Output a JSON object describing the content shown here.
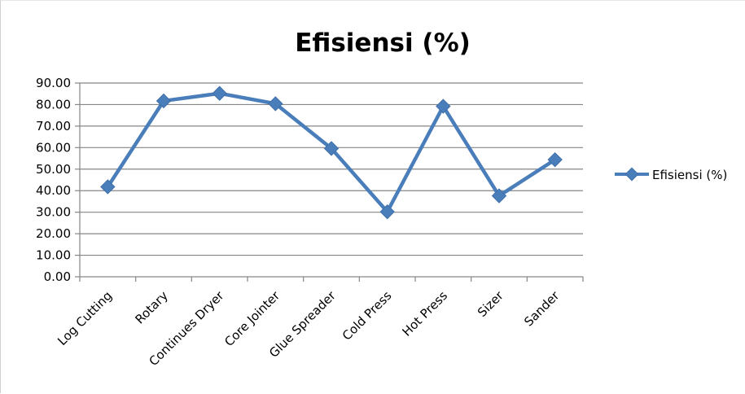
{
  "chart_data": {
    "type": "line",
    "title": "Efisiensi (%)",
    "xlabel": "",
    "ylabel": "",
    "categories": [
      "Log Cutting",
      "Rotary",
      "Continues Dryer",
      "Core Jointer",
      "Glue Spreader",
      "Cold Press",
      "Hot Press",
      "Sizer",
      "Sander"
    ],
    "series": [
      {
        "name": "Efisiensi (%)",
        "values": [
          41.8,
          81.7,
          85.2,
          80.4,
          59.6,
          30.2,
          79.2,
          37.6,
          54.4
        ],
        "color": "#4a7ebb",
        "marker": "diamond"
      }
    ],
    "ylim": [
      0,
      90
    ],
    "yticks": [
      "0.00",
      "10.00",
      "20.00",
      "30.00",
      "40.00",
      "50.00",
      "60.00",
      "70.00",
      "80.00",
      "90.00"
    ],
    "grid": true,
    "legend": "right"
  }
}
